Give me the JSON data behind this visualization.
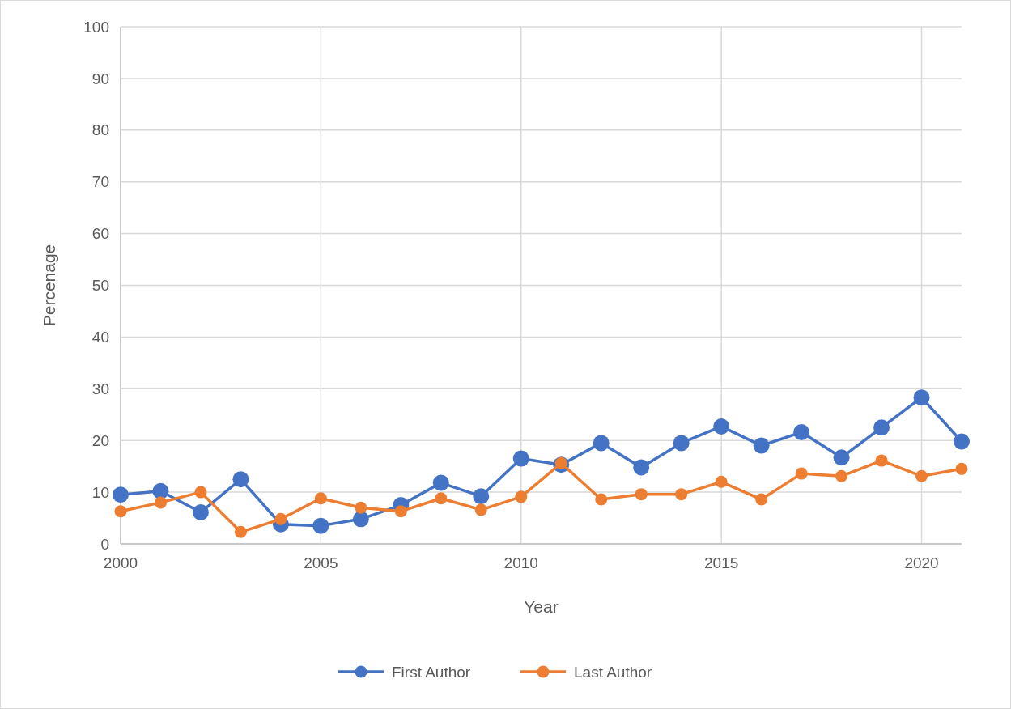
{
  "chart_data": {
    "type": "line",
    "xlabel": "Year",
    "ylabel": "Percenage",
    "x": [
      2000,
      2001,
      2002,
      2003,
      2004,
      2005,
      2006,
      2007,
      2008,
      2009,
      2010,
      2011,
      2012,
      2013,
      2014,
      2015,
      2016,
      2017,
      2018,
      2019,
      2020,
      2021
    ],
    "series": [
      {
        "name": "First Author",
        "color": "#4472c4",
        "values": [
          9.5,
          10.2,
          6.1,
          12.5,
          3.8,
          3.5,
          4.8,
          7.5,
          11.8,
          9.2,
          16.5,
          15.3,
          19.5,
          14.8,
          19.5,
          22.7,
          19.0,
          21.6,
          16.7,
          22.5,
          28.3,
          19.8
        ]
      },
      {
        "name": "Last Author",
        "color": "#ed7d31",
        "values": [
          6.3,
          8.0,
          10.0,
          2.3,
          4.8,
          8.8,
          7.0,
          6.3,
          8.8,
          6.6,
          9.1,
          15.6,
          8.6,
          9.6,
          9.6,
          12.0,
          8.6,
          13.6,
          13.1,
          16.1,
          13.1,
          14.5
        ]
      }
    ],
    "xlim": [
      2000,
      2021
    ],
    "xticks": [
      2000,
      2005,
      2010,
      2015,
      2020
    ],
    "ylim": [
      0,
      100
    ],
    "yticks": [
      0,
      10,
      20,
      30,
      40,
      50,
      60,
      70,
      80,
      90,
      100
    ],
    "grid": true,
    "legend": "bottom",
    "marker": "circle",
    "line_style": "solid"
  }
}
